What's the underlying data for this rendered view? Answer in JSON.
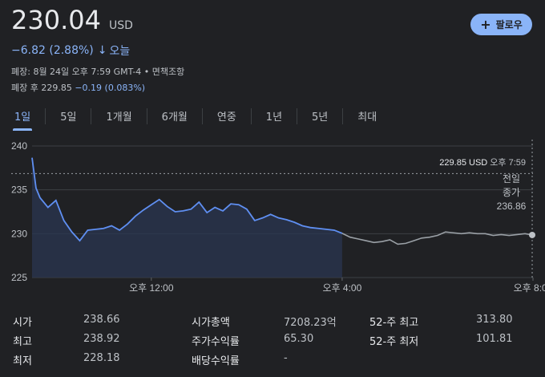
{
  "quote": {
    "price": "230.04",
    "currency": "USD",
    "change": "−6.82 (2.88%)",
    "change_icon": "arrow-down-icon",
    "period_label": "오늘",
    "closed_line": "폐장: 8월 24일 오후 7:59 GMT-4 • 면책조항",
    "after_hours_prefix": "폐장 후 229.85",
    "after_hours_change": "−0.19 (0.083%)"
  },
  "follow_button": {
    "icon": "plus-icon",
    "label": "팔로우"
  },
  "tabs": [
    {
      "label": "1일",
      "active": true
    },
    {
      "label": "5일",
      "active": false
    },
    {
      "label": "1개월",
      "active": false
    },
    {
      "label": "6개월",
      "active": false
    },
    {
      "label": "연중",
      "active": false
    },
    {
      "label": "1년",
      "active": false
    },
    {
      "label": "5년",
      "active": false
    },
    {
      "label": "최대",
      "active": false
    }
  ],
  "chart_data": {
    "type": "line",
    "y_ticks": [
      "240",
      "235",
      "230",
      "225"
    ],
    "ylim": [
      225,
      240
    ],
    "x_ticks": [
      "오후 12:00",
      "오후 4:00",
      "오후 8:00"
    ],
    "xlim": [
      "09:30",
      "20:00"
    ],
    "x_tick_values": [
      "12:00",
      "16:00",
      "20:00"
    ],
    "previous_close": 236.86,
    "previous_close_label": [
      "전일",
      "종가",
      "236.86"
    ],
    "tooltip": {
      "price": "229.85 USD",
      "time": "오후 7:59"
    },
    "colors": {
      "regular": "#5f8ff2",
      "extended": "#9aa0a6",
      "fill": "#2a3650"
    },
    "series": [
      {
        "session": "regular",
        "x": [
          "09:30",
          "09:35",
          "09:40",
          "09:50",
          "10:00",
          "10:10",
          "10:20",
          "10:30",
          "10:40",
          "10:50",
          "11:00",
          "11:10",
          "11:20",
          "11:30",
          "11:40",
          "11:50",
          "12:00",
          "12:10",
          "12:20",
          "12:30",
          "12:40",
          "12:50",
          "13:00",
          "13:10",
          "13:20",
          "13:30",
          "13:40",
          "13:50",
          "14:00",
          "14:10",
          "14:20",
          "14:30",
          "14:40",
          "14:50",
          "15:00",
          "15:10",
          "15:20",
          "15:30",
          "15:40",
          "15:50",
          "16:00"
        ],
        "y": [
          238.66,
          235.2,
          234.1,
          233.0,
          233.8,
          231.5,
          230.2,
          229.2,
          230.4,
          230.5,
          230.6,
          230.9,
          230.4,
          231.1,
          232.0,
          232.7,
          233.3,
          233.9,
          233.1,
          232.5,
          232.6,
          232.8,
          233.6,
          232.4,
          233.0,
          232.6,
          233.4,
          233.3,
          232.8,
          231.5,
          231.8,
          232.2,
          231.8,
          231.6,
          231.3,
          230.9,
          230.7,
          230.6,
          230.5,
          230.4,
          230.04
        ]
      },
      {
        "session": "extended",
        "x": [
          "16:00",
          "16:10",
          "16:20",
          "16:30",
          "16:40",
          "16:50",
          "17:00",
          "17:10",
          "17:20",
          "17:30",
          "17:40",
          "17:50",
          "18:00",
          "18:10",
          "18:20",
          "18:30",
          "18:40",
          "18:50",
          "19:00",
          "19:10",
          "19:20",
          "19:30",
          "19:40",
          "19:50",
          "19:59"
        ],
        "y": [
          230.04,
          229.6,
          229.4,
          229.2,
          229.0,
          229.1,
          229.3,
          228.8,
          228.9,
          229.2,
          229.5,
          229.6,
          229.8,
          230.2,
          230.1,
          230.0,
          230.1,
          230.0,
          230.0,
          229.8,
          229.9,
          229.8,
          229.9,
          230.0,
          229.85
        ]
      }
    ]
  },
  "stats": [
    {
      "label": "시가",
      "value": "238.66"
    },
    {
      "label": "최고",
      "value": "238.92"
    },
    {
      "label": "최저",
      "value": "228.18"
    },
    {
      "label": "시가총액",
      "value": "7208.23억"
    },
    {
      "label": "주가수익률",
      "value": "65.30"
    },
    {
      "label": "배당수익률",
      "value": "-"
    },
    {
      "label": "52-주 최고",
      "value": "313.80"
    },
    {
      "label": "52-주 최저",
      "value": "101.81"
    }
  ]
}
